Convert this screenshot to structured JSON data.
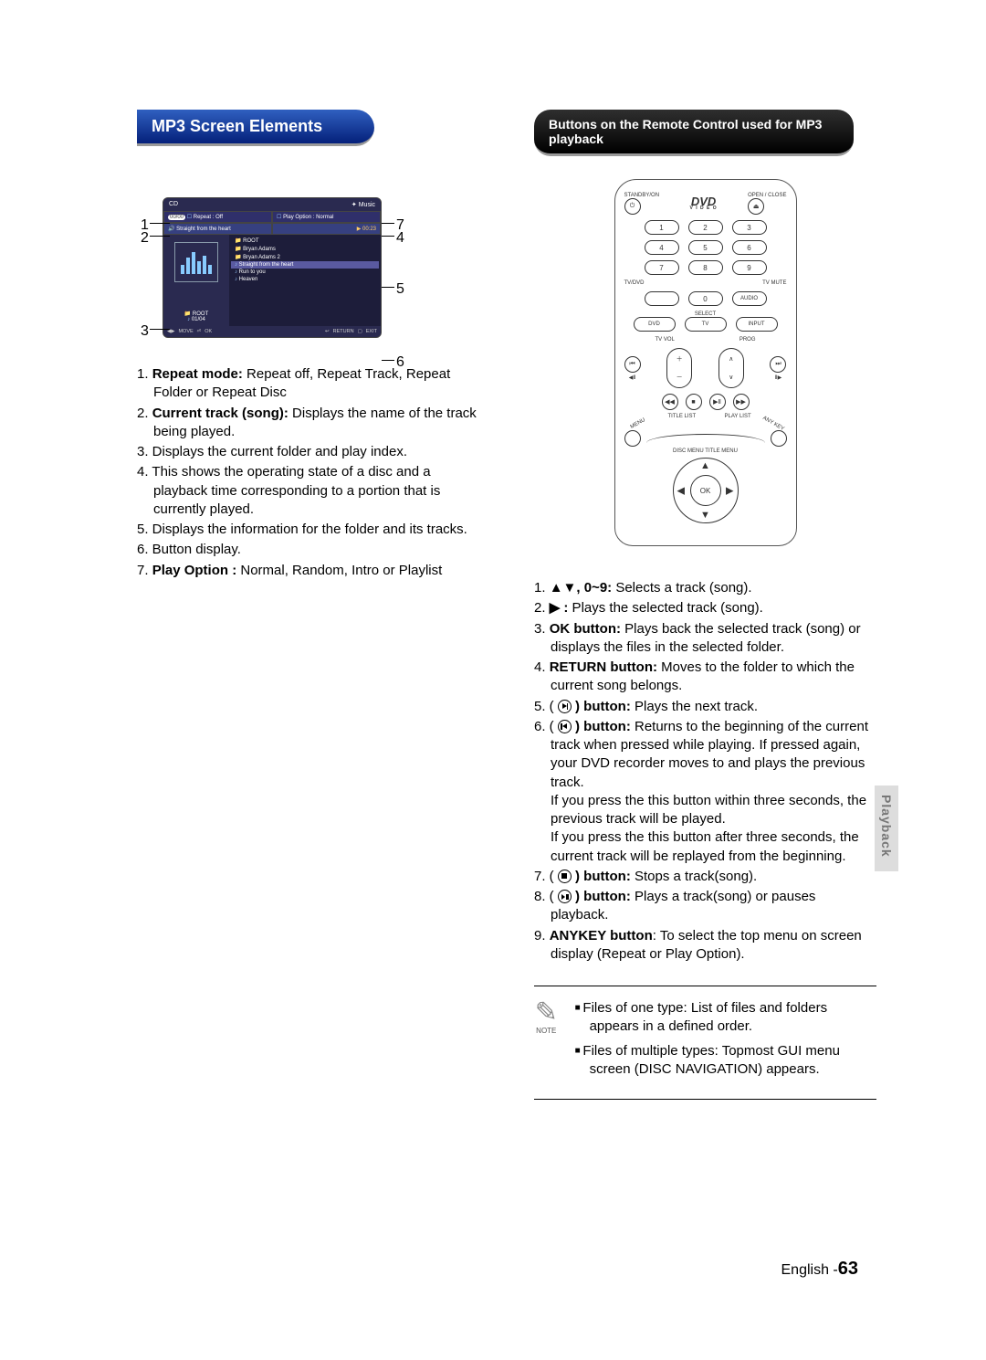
{
  "headings": {
    "left": "MP3 Screen Elements",
    "right": "Buttons on the Remote Control used for MP3 playback"
  },
  "screen": {
    "top_left": "CD",
    "top_right": "✦ Music",
    "row1a_prefix": "00/00",
    "row1a": "Repeat : Off",
    "row1b": "Play Option : Normal",
    "row2a": "Straight from the heart",
    "row2b": "▶  00:23",
    "left_root": "ROOT",
    "left_pos": "01/04",
    "list": [
      "ROOT",
      "Bryan Adams",
      "Bryan Adams  2",
      "Straight from the heart",
      "Run to you",
      "Heaven"
    ],
    "footer": [
      "MOVE",
      "OK",
      "RETURN",
      "EXIT"
    ],
    "callouts_left": [
      "1",
      "2",
      "3"
    ],
    "callouts_right": [
      "7",
      "4",
      "5",
      "6"
    ]
  },
  "left_list": [
    {
      "n": "1.",
      "b": "Repeat mode:",
      "t": " Repeat off, Repeat Track, Repeat Folder or Repeat Disc"
    },
    {
      "n": "2.",
      "b": "Current track (song):",
      "t": " Displays the name of the track being played."
    },
    {
      "n": "3.",
      "b": "",
      "t": "Displays the current folder and play index."
    },
    {
      "n": "4.",
      "b": "",
      "t": "This shows the operating state of a disc and a playback time corresponding to a portion that is currently played."
    },
    {
      "n": "5.",
      "b": "",
      "t": "Displays the information for the folder and its tracks."
    },
    {
      "n": "6.",
      "b": "",
      "t": "Button display."
    },
    {
      "n": "7.",
      "b": "Play Option :",
      "t": " Normal, Random, Intro or Playlist"
    }
  ],
  "remote": {
    "standby": "STANDBY/ON",
    "open": "OPEN / CLOSE",
    "dvd": "DVD",
    "dvd_sub": "V I D E O",
    "nums": [
      "1",
      "2",
      "3",
      "4",
      "5",
      "6",
      "7",
      "8",
      "9",
      "0"
    ],
    "tvdvd": "TV/DVD",
    "tvmute": "TV MUTE",
    "audio": "AUDIO",
    "select": "SELECT",
    "sel_buttons": [
      "DVD",
      "TV",
      "INPUT"
    ],
    "tvvol": "TV VOL",
    "prog": "PROG",
    "ok": "OK",
    "curved": {
      "menu": "MENU",
      "title": "TITLE LIST",
      "play": "PLAY LIST",
      "any": "ANY KEY",
      "disc": "DISC MENU TITLE MENU"
    }
  },
  "right_list": [
    {
      "n": "1.",
      "pre": "",
      "b": "▲▼, 0~9:",
      "t": " Selects a track (song)."
    },
    {
      "n": "2.",
      "pre": "",
      "b": "▶ :",
      "t": " Plays the selected track (song)."
    },
    {
      "n": "3.",
      "pre": "",
      "b": "OK button:",
      "t": " Plays back the selected track (song) or displays the files in the selected folder."
    },
    {
      "n": "4.",
      "pre": "",
      "b": "RETURN button:",
      "t": " Moves to the folder to which the current song belongs."
    },
    {
      "n": "5.",
      "icon": "next",
      "b": ") button:",
      "t": " Plays the next track.",
      "pre": "( "
    },
    {
      "n": "6.",
      "icon": "prev",
      "b": ") button:",
      "t": " Returns to the beginning of the current track when pressed while playing. If pressed again, your DVD recorder moves to and plays the previous track.",
      "pre": "( ",
      "extra": [
        "If you press the this button within three seconds, the previous track will be played.",
        "If you press the this button after three seconds, the current track will be replayed from the beginning."
      ]
    },
    {
      "n": "7.",
      "icon": "stop",
      "b": ") button:",
      "t": " Stops a track(song).",
      "pre": "( "
    },
    {
      "n": "8.",
      "icon": "playpause",
      "b": ") button:",
      "t": " Plays a track(song) or pauses playback.",
      "pre": "( "
    },
    {
      "n": "9.",
      "pre": "",
      "b": "ANYKEY button",
      "t": ": To select the top menu on screen display (Repeat or Play Option)."
    }
  ],
  "note": {
    "label": "NOTE",
    "items": [
      "Files of one type: List of files and folders appears in a defined order.",
      "Files of multiple types: Topmost GUI menu screen (DISC NAVIGATION) appears."
    ]
  },
  "footer": {
    "lang": "English -",
    "page": "63"
  },
  "sidetab": "Playback"
}
